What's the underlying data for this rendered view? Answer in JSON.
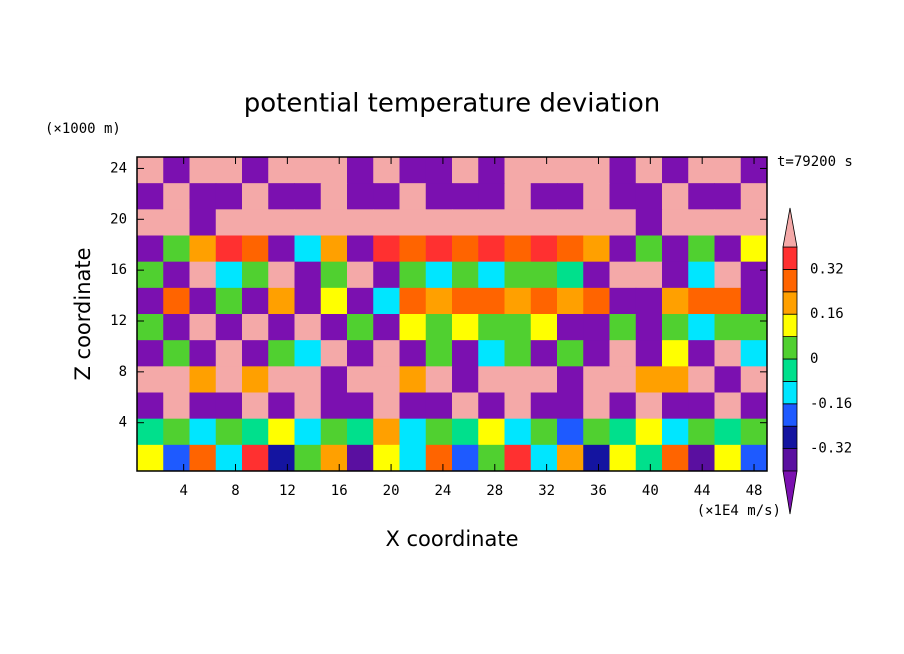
{
  "chart_data": {
    "type": "contour",
    "title": "potential temperature deviation",
    "x_label": "X coordinate",
    "y_label": "Z coordinate",
    "x_unit": "(×1E4 m/s)",
    "y_unit": "(×1000 m)",
    "annotation": "t=79200 s",
    "xlim": [
      0.4,
      49.0
    ],
    "ylim": [
      0.2,
      24.9
    ],
    "xticks": [
      4,
      8,
      12,
      16,
      20,
      24,
      28,
      32,
      36,
      40,
      44,
      48
    ],
    "yticks": [
      4,
      8,
      12,
      16,
      20,
      24
    ],
    "levels": [
      -0.4,
      -0.32,
      -0.24,
      -0.16,
      -0.08,
      0,
      0.08,
      0.16,
      0.24,
      0.32,
      0.4
    ],
    "colorbar_ticks": [
      -0.32,
      -0.16,
      0,
      0.16,
      0.32
    ],
    "colors": [
      "#7b10b0",
      "#5a0fa0",
      "#1414a0",
      "#1e5aff",
      "#00e6ff",
      "#00e08c",
      "#50d030",
      "#ffff00",
      "#ffa000",
      "#ff6400",
      "#ff3030",
      "#f4a9a8"
    ],
    "z": [
      [
        0.45,
        -0.45,
        0.45,
        0.45,
        -0.45,
        0.45,
        0.45,
        0.45,
        -0.45,
        0.45,
        -0.45,
        -0.45,
        0.45,
        -0.45,
        0.45,
        0.45,
        0.45,
        0.45,
        -0.45,
        0.45,
        -0.45,
        0.45,
        0.45,
        -0.45
      ],
      [
        -0.45,
        0.45,
        -0.45,
        -0.45,
        0.45,
        -0.45,
        -0.45,
        0.45,
        -0.45,
        -0.45,
        0.45,
        -0.45,
        -0.45,
        -0.45,
        0.45,
        -0.45,
        -0.45,
        0.45,
        -0.45,
        -0.45,
        0.45,
        -0.45,
        -0.45,
        0.45
      ],
      [
        0.45,
        0.45,
        -0.45,
        0.45,
        0.45,
        0.45,
        0.45,
        0.45,
        0.45,
        0.45,
        0.45,
        0.45,
        0.45,
        0.45,
        0.45,
        0.45,
        0.45,
        0.45,
        0.45,
        -0.45,
        0.45,
        0.45,
        0.45,
        0.45
      ],
      [
        -0.45,
        0.04,
        0.2,
        0.36,
        0.28,
        -0.45,
        -0.12,
        0.2,
        -0.45,
        0.36,
        0.28,
        0.36,
        0.28,
        0.36,
        0.28,
        0.36,
        0.28,
        0.2,
        -0.45,
        0.04,
        -0.45,
        0.04,
        -0.45,
        0.12
      ],
      [
        0.04,
        -0.45,
        0.45,
        -0.12,
        0.04,
        0.45,
        -0.45,
        0.04,
        0.45,
        -0.45,
        0.04,
        -0.12,
        0.04,
        -0.12,
        0.04,
        0.04,
        -0.04,
        -0.45,
        0.45,
        0.45,
        -0.45,
        -0.12,
        0.45,
        -0.45
      ],
      [
        -0.45,
        0.28,
        -0.45,
        0.04,
        -0.45,
        0.2,
        -0.45,
        0.12,
        -0.45,
        -0.12,
        0.28,
        0.2,
        0.28,
        0.28,
        0.2,
        0.28,
        0.2,
        0.28,
        -0.45,
        -0.45,
        0.2,
        0.28,
        0.28,
        -0.45
      ],
      [
        0.04,
        -0.45,
        0.45,
        -0.45,
        0.45,
        -0.45,
        0.45,
        -0.45,
        0.04,
        -0.45,
        0.12,
        0.04,
        0.12,
        0.04,
        0.04,
        0.12,
        -0.45,
        -0.45,
        0.04,
        -0.45,
        0.04,
        -0.12,
        0.04,
        0.04
      ],
      [
        -0.45,
        0.04,
        -0.45,
        0.45,
        -0.45,
        0.04,
        -0.12,
        0.45,
        -0.45,
        0.45,
        -0.45,
        0.04,
        -0.45,
        -0.12,
        0.04,
        -0.45,
        0.04,
        -0.45,
        0.45,
        -0.45,
        0.12,
        -0.45,
        0.45,
        -0.12
      ],
      [
        0.45,
        0.45,
        0.2,
        0.45,
        0.2,
        0.45,
        0.45,
        -0.45,
        0.45,
        0.45,
        0.2,
        0.45,
        -0.45,
        0.45,
        0.45,
        0.45,
        -0.45,
        0.45,
        0.45,
        0.2,
        0.2,
        0.45,
        -0.45,
        0.45
      ],
      [
        -0.45,
        0.45,
        -0.45,
        -0.45,
        0.45,
        -0.45,
        0.45,
        -0.45,
        -0.45,
        0.45,
        -0.45,
        -0.45,
        0.45,
        -0.45,
        0.45,
        -0.45,
        -0.45,
        0.45,
        -0.45,
        0.45,
        -0.45,
        -0.45,
        0.45,
        -0.45
      ],
      [
        -0.04,
        0.04,
        -0.12,
        0.04,
        -0.04,
        0.12,
        -0.12,
        0.04,
        -0.04,
        0.2,
        -0.12,
        0.04,
        -0.04,
        0.12,
        -0.12,
        0.04,
        -0.2,
        0.04,
        -0.04,
        0.12,
        -0.12,
        0.04,
        -0.04,
        0.04
      ],
      [
        0.12,
        -0.2,
        0.28,
        -0.12,
        0.36,
        -0.28,
        0.04,
        0.2,
        -0.36,
        0.12,
        -0.12,
        0.28,
        -0.2,
        0.04,
        0.36,
        -0.12,
        0.2,
        -0.28,
        0.12,
        -0.04,
        0.28,
        -0.36,
        0.12,
        -0.2
      ]
    ]
  }
}
